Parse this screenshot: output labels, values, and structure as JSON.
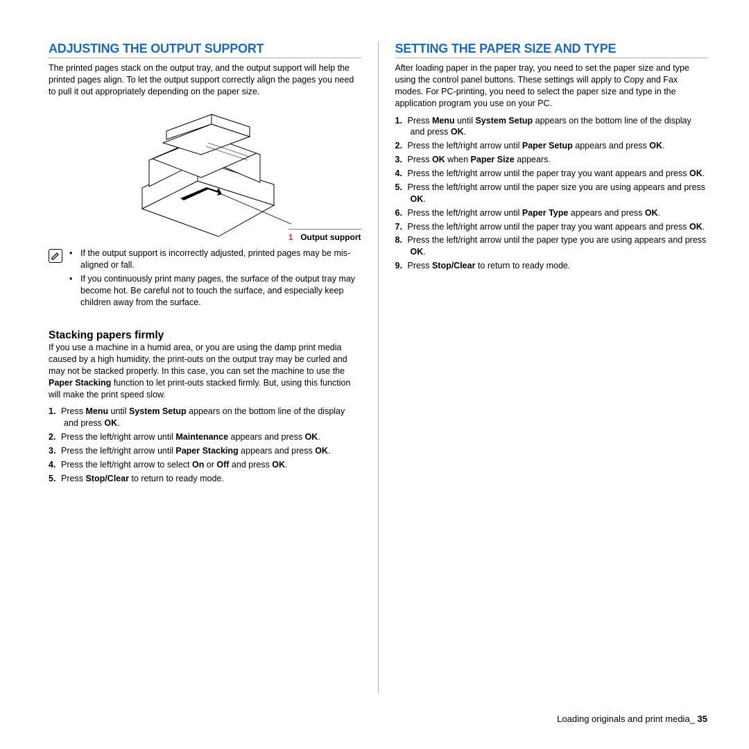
{
  "colors": {
    "accent": "#2069b4",
    "rule": "#b0b0b0",
    "text": "#000000",
    "background": "#ffffff",
    "callout_num": "#c13a32"
  },
  "left": {
    "heading": "ADJUSTING THE OUTPUT SUPPORT",
    "intro": "The printed pages stack on the output tray, and the output support will help the printed pages align. To let the output support correctly align the pages you need to pull it out appropriately depending on the paper size.",
    "callout": {
      "num": "1",
      "label": "Output support"
    },
    "notes": [
      "If the output support is incorrectly adjusted, printed pages may be mis-aligned or fall.",
      "If you continuously print many pages, the surface of the output tray may become hot. Be careful not to touch the surface, and especially keep children away from the surface."
    ],
    "subhead": "Stacking papers firmly",
    "sub_intro_parts": [
      "If you use a machine in a humid area, or you are using the damp print media caused by a high humidity, the print-outs on the output tray may be curled and may not be stacked properly. In this case, you can set the machine to use the ",
      "Paper Stacking",
      " function to let print-outs stacked firmly. But, using this function will make the print speed slow."
    ],
    "steps": [
      [
        "Press ",
        "Menu",
        " until ",
        "System Setup",
        " appears on the bottom line of the display and press ",
        "OK",
        "."
      ],
      [
        "Press the left/right arrow until ",
        "Maintenance",
        " appears and press ",
        "OK",
        "."
      ],
      [
        "Press the left/right arrow until ",
        "Paper Stacking",
        " appears and press ",
        "OK",
        "."
      ],
      [
        "Press the left/right arrow to select ",
        "On",
        " or ",
        "Off",
        " and press ",
        "OK",
        "."
      ],
      [
        "Press ",
        "Stop/Clear",
        " to return to ready mode."
      ]
    ]
  },
  "right": {
    "heading": "SETTING THE PAPER SIZE AND TYPE",
    "intro": "After loading paper in the paper tray, you need to set the paper size and type using the control panel buttons. These settings will apply to Copy and Fax modes. For PC-printing, you need to select the paper size and type in the application program you use on your PC.",
    "steps": [
      [
        "Press ",
        "Menu",
        " until ",
        "System Setup",
        " appears on the bottom line of the display and press ",
        "OK",
        "."
      ],
      [
        "Press the left/right arrow until ",
        "Paper Setup",
        " appears and press ",
        "OK",
        "."
      ],
      [
        "Press ",
        "OK",
        " when ",
        "Paper Size",
        " appears."
      ],
      [
        "Press the left/right arrow until the paper tray you want appears and press ",
        "OK",
        "."
      ],
      [
        "Press the left/right arrow until the paper size you are using appears and press ",
        "OK",
        "."
      ],
      [
        "Press the left/right arrow until ",
        "Paper Type",
        " appears and press ",
        "OK",
        "."
      ],
      [
        "Press the left/right arrow until the paper tray you want appears and press ",
        "OK",
        "."
      ],
      [
        "Press the left/right arrow until the paper type you are using appears and press ",
        "OK",
        "."
      ],
      [
        "Press ",
        "Stop/Clear",
        " to return to ready mode."
      ]
    ]
  },
  "footer": {
    "text": "Loading originals and print media_",
    "page": "35"
  }
}
